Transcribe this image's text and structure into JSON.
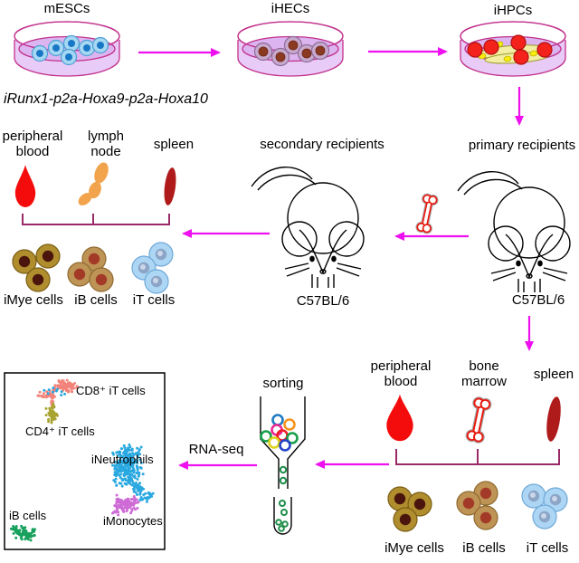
{
  "colors": {
    "arrow": "#EE10EE",
    "bracket": "#9A2A67",
    "blood_drop": "#F40B0B",
    "lymph_node": "#F2A44C",
    "spleen": "#AF1A1A",
    "bone": "#E8190F",
    "dish_outline": "#C2308C",
    "dish_medium": "#DCB4F0"
  },
  "top_row": {
    "dishes": [
      {
        "label": "mESCs"
      },
      {
        "label": "iHECs"
      },
      {
        "label": "iHPCs"
      }
    ],
    "construct_label": "iRunx1-p2a-Hoxa9-p2a-Hoxa10"
  },
  "organs_left": {
    "items": [
      {
        "label": "peripheral blood"
      },
      {
        "label": "lymph node"
      },
      {
        "label": "spleen"
      }
    ]
  },
  "mice": {
    "secondary": {
      "title": "secondary recipients",
      "strain": "C57BL/6"
    },
    "primary": {
      "title": "primary recipients",
      "strain": "C57BL/6"
    }
  },
  "cells_left": {
    "items": [
      {
        "label": "iMye cells"
      },
      {
        "label": "iB cells"
      },
      {
        "label": "iT cells"
      }
    ]
  },
  "organs_bottom": {
    "items": [
      {
        "label": "peripheral blood"
      },
      {
        "label": "bone marrow"
      },
      {
        "label": "spleen"
      }
    ]
  },
  "cells_bottom": {
    "items": [
      {
        "label": "iMye cells"
      },
      {
        "label": "iB cells"
      },
      {
        "label": "iT cells"
      }
    ]
  },
  "sorting_label": "sorting",
  "rnaseq_label": "RNA-seq",
  "tsne": {
    "clusters": [
      {
        "id": "cd8",
        "label": "CD8⁺ iT cells",
        "color": "#F2837B"
      },
      {
        "id": "cd4",
        "label": "CD4⁺ iT cells",
        "color": "#A9A431"
      },
      {
        "id": "ineutrophils",
        "label": "iNeutrophils",
        "color": "#29A8E0"
      },
      {
        "id": "imonocytes",
        "label": "iMonocytes",
        "color": "#CE6BD6"
      },
      {
        "id": "ib",
        "label": "iB cells",
        "color": "#17A15D"
      }
    ]
  }
}
